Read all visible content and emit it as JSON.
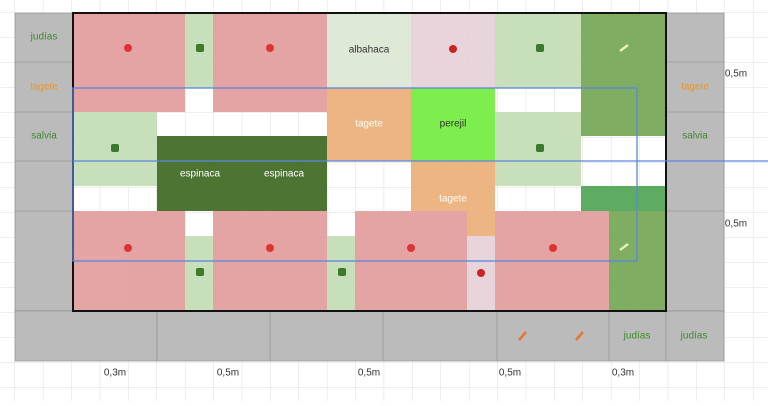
{
  "border": {
    "left": [
      "judías",
      "tagete",
      "salvia"
    ],
    "right": [
      "tagete",
      "salvia"
    ],
    "bottom": [
      "judías",
      "judías"
    ]
  },
  "bed": {
    "plants": [
      "albahaca",
      "tagete",
      "perejil",
      "espinaca",
      "espinaca",
      "tagete"
    ]
  },
  "dimensions": {
    "right": [
      "0,5m",
      "0,5m"
    ],
    "bottom": [
      "0,3m",
      "0,5m",
      "0,5m",
      "0,5m",
      "0,3m"
    ]
  }
}
